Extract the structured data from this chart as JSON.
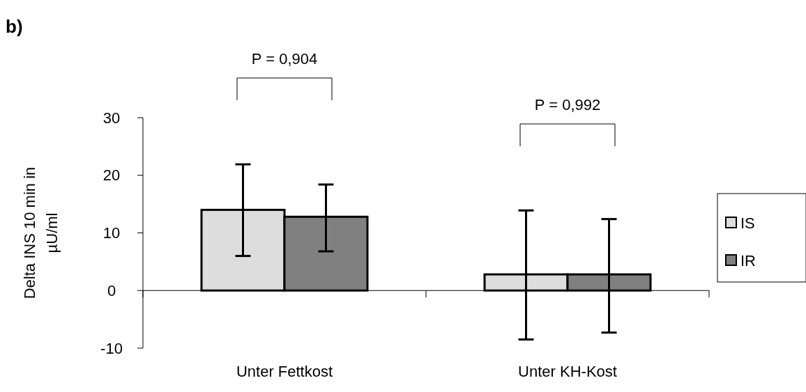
{
  "chart_data": {
    "type": "bar",
    "title": "b)",
    "ylabel": "Delta INS 10 min in µU/ml",
    "categories": [
      "Unter Fettkost",
      "Unter KH-Kost"
    ],
    "series": [
      {
        "name": "IS",
        "color": "#dddddd",
        "values": [
          14.0,
          2.8
        ],
        "errors": [
          [
            6.0,
            21.9
          ],
          [
            -8.5,
            13.9
          ]
        ]
      },
      {
        "name": "IR",
        "color": "#808080",
        "values": [
          12.8,
          2.8
        ],
        "errors": [
          [
            6.8,
            18.4
          ],
          [
            -7.3,
            12.4
          ]
        ]
      }
    ],
    "ylim": [
      -10,
      30
    ],
    "yticks": [
      -10,
      0,
      10,
      20,
      30
    ],
    "legend": "right",
    "annotations": [
      "P = 0,904",
      "P = 0,992"
    ]
  }
}
